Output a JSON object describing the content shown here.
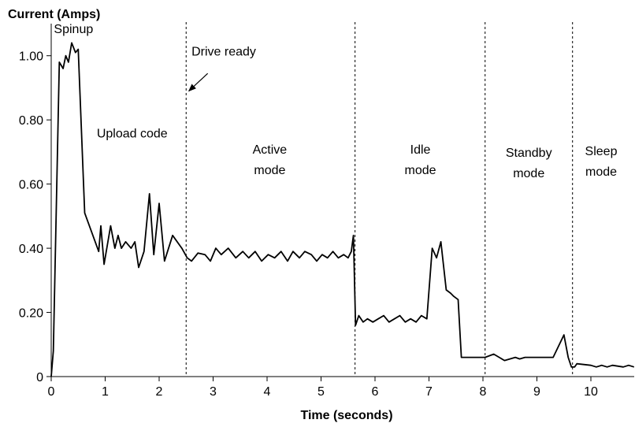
{
  "chart_data": {
    "type": "line",
    "ylabel": "Current (Amps)",
    "xlabel": "Time (seconds)",
    "xlim": [
      0,
      10.8
    ],
    "ylim": [
      0,
      1.1
    ],
    "x_ticks": [
      "0",
      "1",
      "2",
      "3",
      "4",
      "5",
      "6",
      "7",
      "8",
      "9",
      "10"
    ],
    "y_ticks": [
      {
        "value": 0,
        "label": "0"
      },
      {
        "value": 0.2,
        "label": "0.20"
      },
      {
        "value": 0.4,
        "label": "0.40"
      },
      {
        "value": 0.6,
        "label": "0.60"
      },
      {
        "value": 0.8,
        "label": "0.80"
      },
      {
        "value": 1.0,
        "label": "1.00"
      }
    ],
    "grid": false,
    "boundaries": [
      2.5,
      5.63,
      8.04,
      9.66
    ],
    "regions": [
      {
        "lines": [
          "Spinup"
        ],
        "x": 0.05,
        "y": 1.07,
        "anchor": "start"
      },
      {
        "lines": [
          "Upload code"
        ],
        "x": 1.5,
        "y": 0.745,
        "anchor": "middle"
      },
      {
        "lines": [
          "Active",
          "mode"
        ],
        "x": 4.05,
        "y": 0.695,
        "anchor": "middle"
      },
      {
        "lines": [
          "Idle",
          "mode"
        ],
        "x": 6.84,
        "y": 0.695,
        "anchor": "middle"
      },
      {
        "lines": [
          "Standby",
          "mode"
        ],
        "x": 8.85,
        "y": 0.685,
        "anchor": "middle"
      },
      {
        "lines": [
          "Sleep",
          "mode"
        ],
        "x": 10.19,
        "y": 0.69,
        "anchor": "middle"
      }
    ],
    "annotation": {
      "text": "Drive ready",
      "text_x": 2.6,
      "text_y": 1.0,
      "arrow_from": [
        2.9,
        0.945
      ],
      "arrow_to": [
        2.55,
        0.89
      ]
    },
    "series": [
      {
        "x": [
          0.0,
          0.04,
          0.15,
          0.22,
          0.27,
          0.32,
          0.38,
          0.45,
          0.5,
          0.62,
          0.88,
          0.92,
          0.98,
          1.1,
          1.18,
          1.24,
          1.3,
          1.38,
          1.48,
          1.55,
          1.62,
          1.72,
          1.82,
          1.9,
          2.0,
          2.1,
          2.25,
          2.42,
          2.52,
          2.6,
          2.72,
          2.85,
          2.95,
          3.05,
          3.15,
          3.28,
          3.42,
          3.55,
          3.66,
          3.78,
          3.9,
          4.02,
          4.14,
          4.26,
          4.38,
          4.48,
          4.6,
          4.7,
          4.82,
          4.92,
          5.02,
          5.12,
          5.22,
          5.32,
          5.42,
          5.5,
          5.56,
          5.6,
          5.64,
          5.7,
          5.78,
          5.86,
          5.96,
          6.06,
          6.16,
          6.26,
          6.36,
          6.46,
          6.56,
          6.66,
          6.76,
          6.86,
          6.96,
          7.06,
          7.14,
          7.22,
          7.32,
          7.4,
          7.46,
          7.54,
          7.6,
          7.7,
          7.8,
          7.98,
          8.04,
          8.2,
          8.4,
          8.6,
          8.68,
          8.78,
          8.9,
          9.0,
          9.1,
          9.3,
          9.5,
          9.58,
          9.64,
          9.7,
          9.74,
          10.0,
          10.1,
          10.2,
          10.3,
          10.4,
          10.6,
          10.7,
          10.8
        ],
        "y": [
          0.0,
          0.08,
          0.98,
          0.96,
          1.0,
          0.98,
          1.04,
          1.01,
          1.02,
          0.51,
          0.39,
          0.47,
          0.35,
          0.47,
          0.4,
          0.44,
          0.4,
          0.42,
          0.4,
          0.42,
          0.34,
          0.39,
          0.57,
          0.38,
          0.54,
          0.36,
          0.44,
          0.4,
          0.37,
          0.36,
          0.385,
          0.38,
          0.36,
          0.4,
          0.38,
          0.4,
          0.37,
          0.39,
          0.37,
          0.39,
          0.36,
          0.38,
          0.37,
          0.39,
          0.36,
          0.39,
          0.37,
          0.39,
          0.38,
          0.36,
          0.38,
          0.37,
          0.39,
          0.37,
          0.38,
          0.37,
          0.39,
          0.44,
          0.16,
          0.19,
          0.17,
          0.18,
          0.17,
          0.18,
          0.19,
          0.17,
          0.18,
          0.19,
          0.17,
          0.18,
          0.17,
          0.19,
          0.18,
          0.4,
          0.37,
          0.42,
          0.27,
          0.26,
          0.25,
          0.24,
          0.06,
          0.06,
          0.06,
          0.06,
          0.06,
          0.07,
          0.05,
          0.06,
          0.055,
          0.06,
          0.06,
          0.06,
          0.06,
          0.06,
          0.13,
          0.06,
          0.03,
          0.03,
          0.04,
          0.035,
          0.03,
          0.035,
          0.03,
          0.035,
          0.03,
          0.035,
          0.03
        ]
      }
    ]
  }
}
